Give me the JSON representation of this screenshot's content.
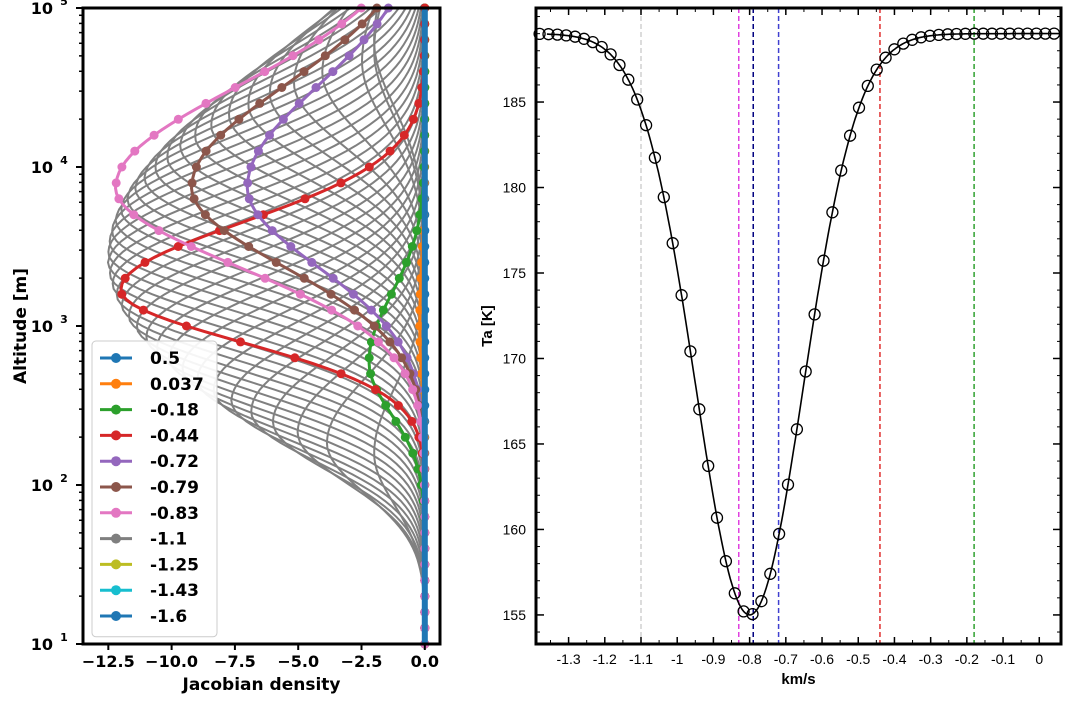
{
  "chart_data": [
    {
      "type": "line",
      "panel": "left",
      "xlabel": "Jacobian density",
      "ylabel": "Altitude [m]",
      "xlim": [
        -13.5,
        0.6
      ],
      "ylim": [
        10,
        100000
      ],
      "yscale": "log",
      "x_ticks": [
        -12.5,
        -10,
        -7.5,
        -5,
        -2.5,
        0
      ],
      "x_tick_labels": [
        "−12.5",
        "−10.0",
        "−7.5",
        "−5.0",
        "−2.5",
        "0.0"
      ],
      "y_ticks": [
        10,
        100,
        1000,
        10000,
        100000
      ],
      "y_tick_bases": [
        "10",
        "10",
        "10",
        "10",
        "10"
      ],
      "y_tick_exps": [
        "1",
        "2",
        "3",
        "4",
        "5"
      ],
      "background_series": {
        "color": "#808080",
        "count": 40
      },
      "series": [
        {
          "name": "0.5",
          "color": "#1f77b4",
          "peak_alt": 100000,
          "peak_value": -0.02
        },
        {
          "name": "0.037",
          "color": "#ff7f0e",
          "peak_alt": 1000,
          "peak_value": -0.2
        },
        {
          "name": "-0.18",
          "color": "#2ca02c",
          "peak_alt": 600,
          "peak_value": -2.2
        },
        {
          "name": "-0.44",
          "color": "#d62728",
          "peak_alt": 1700,
          "peak_value": -12.0
        },
        {
          "name": "-0.72",
          "color": "#9467bd",
          "peak_alt": 7500,
          "peak_value": -7.0
        },
        {
          "name": "-0.79",
          "color": "#8c564b",
          "peak_alt": 7500,
          "peak_value": -9.2
        },
        {
          "name": "-0.83",
          "color": "#e377c2",
          "peak_alt": 7500,
          "peak_value": -12.2
        },
        {
          "name": "-1.1",
          "color": "#7f7f7f",
          "peak_alt": 100000,
          "peak_value": 0
        },
        {
          "name": "-1.25",
          "color": "#bcbd22",
          "peak_alt": 100000,
          "peak_value": 0
        },
        {
          "name": "-1.43",
          "color": "#17becf",
          "peak_alt": 100000,
          "peak_value": 0
        },
        {
          "name": "-1.6",
          "color": "#1f77b4",
          "peak_alt": 100000,
          "peak_value": 0
        }
      ],
      "legend": "lower-left"
    },
    {
      "type": "line",
      "panel": "right",
      "xlabel": "km/s",
      "ylabel": "Ta [K]",
      "xlim": [
        -1.39,
        0.06
      ],
      "ylim": [
        153.3,
        190.5
      ],
      "x_ticks": [
        -1.3,
        -1.2,
        -1.1,
        -1.0,
        -0.9,
        -0.8,
        -0.7,
        -0.6,
        -0.5,
        -0.4,
        -0.3,
        -0.2,
        -0.1,
        0
      ],
      "x_tick_labels": [
        "-1.3",
        "-1.2",
        "-1.1",
        "-1",
        "-0.9",
        "-0.8",
        "-0.7",
        "-0.6",
        "-0.5",
        "-0.4",
        "-0.3",
        "-0.2",
        "-0.1",
        "0"
      ],
      "y_ticks": [
        155,
        160,
        165,
        170,
        175,
        180,
        185
      ],
      "y_tick_labels": [
        "155",
        "160",
        "165",
        "170",
        "175",
        "180",
        "185"
      ],
      "line": {
        "min_x": -0.8,
        "min_y": 155.0,
        "max_y": 189.0,
        "half_width": 0.145,
        "shape": "gaussian"
      },
      "vlines": [
        {
          "x": -1.1,
          "color": "#d0d0d0"
        },
        {
          "x": -0.83,
          "color": "#e040e0"
        },
        {
          "x": -0.79,
          "color": "#000080"
        },
        {
          "x": -0.72,
          "color": "#4040d0"
        },
        {
          "x": -0.44,
          "color": "#e03030"
        },
        {
          "x": -0.18,
          "color": "#30a030"
        }
      ]
    }
  ]
}
